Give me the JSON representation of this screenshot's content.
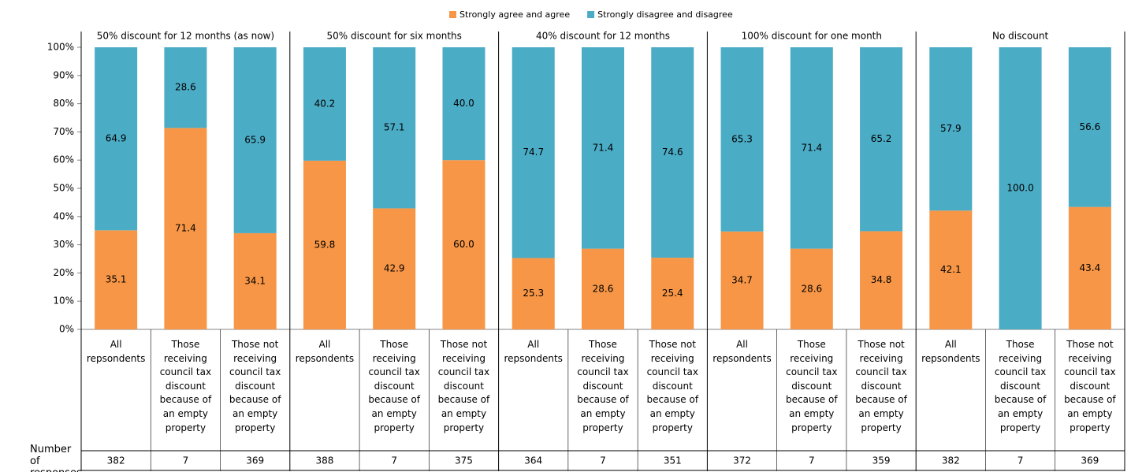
{
  "chart_data": {
    "type": "bar",
    "stacked": true,
    "groups": [
      "50% discount for 12 months (as now)",
      "50% discount for six months",
      "40% discount for 12 months",
      "100% discount for one month",
      "No discount"
    ],
    "categories": [
      "All repsondents",
      "Those receiving council tax discount because of an empty property",
      "Those not receiving council tax discount because of an empty property",
      "All repsondents",
      "Those receiving council tax discount because of an empty property",
      "Those not receiving council tax discount because of an empty property",
      "All repsondents",
      "Those receiving council tax discount because of an empty property",
      "Those not receiving council tax discount because of an empty property",
      "All repsondents",
      "Those receiving council tax discount because of an empty property",
      "Those not receiving council tax discount because of an empty property",
      "All repsondents",
      "Those receiving council tax discount because of an empty property",
      "Those not receiving council tax discount because of an empty property"
    ],
    "series": [
      {
        "name": "Strongly agree and agree",
        "color": "#f79646",
        "values": [
          35.1,
          71.4,
          34.1,
          59.8,
          42.9,
          60.0,
          25.3,
          28.6,
          25.4,
          34.7,
          28.6,
          34.8,
          42.1,
          0,
          43.4
        ],
        "value_labels": [
          "35.1",
          "71.4",
          "34.1",
          "59.8",
          "42.9",
          "60.0",
          "25.3",
          "28.6",
          "25.4",
          "34.7",
          "28.6",
          "34.8",
          "42.1",
          null,
          "43.4"
        ]
      },
      {
        "name": "Strongly disagree and disagree",
        "color": "#4bacc6",
        "values": [
          64.9,
          28.6,
          65.9,
          40.2,
          57.1,
          40.0,
          74.7,
          71.4,
          74.6,
          65.3,
          71.4,
          65.2,
          57.9,
          100.0,
          56.6
        ],
        "value_labels": [
          "64.9",
          "28.6",
          "65.9",
          "40.2",
          "57.1",
          "40.0",
          "74.7",
          "71.4",
          "74.6",
          "65.3",
          "71.4",
          "65.2",
          "57.9",
          "100.0",
          "56.6"
        ]
      }
    ],
    "ylim": [
      0,
      100
    ],
    "yticks": [
      {
        "value": 0,
        "label": "0%"
      },
      {
        "value": 10,
        "label": "10%"
      },
      {
        "value": 20,
        "label": "20%"
      },
      {
        "value": 30,
        "label": "30%"
      },
      {
        "value": 40,
        "label": "40%"
      },
      {
        "value": 50,
        "label": "50%"
      },
      {
        "value": 60,
        "label": "60%"
      },
      {
        "value": 70,
        "label": "70%"
      },
      {
        "value": 80,
        "label": "80%"
      },
      {
        "value": 90,
        "label": "90%"
      },
      {
        "value": 100,
        "label": "100%"
      }
    ],
    "responses_label": "Number of responses",
    "responses": [
      382,
      7,
      369,
      388,
      7,
      375,
      364,
      7,
      351,
      372,
      7,
      359,
      382,
      7,
      369
    ],
    "legend": "top"
  }
}
